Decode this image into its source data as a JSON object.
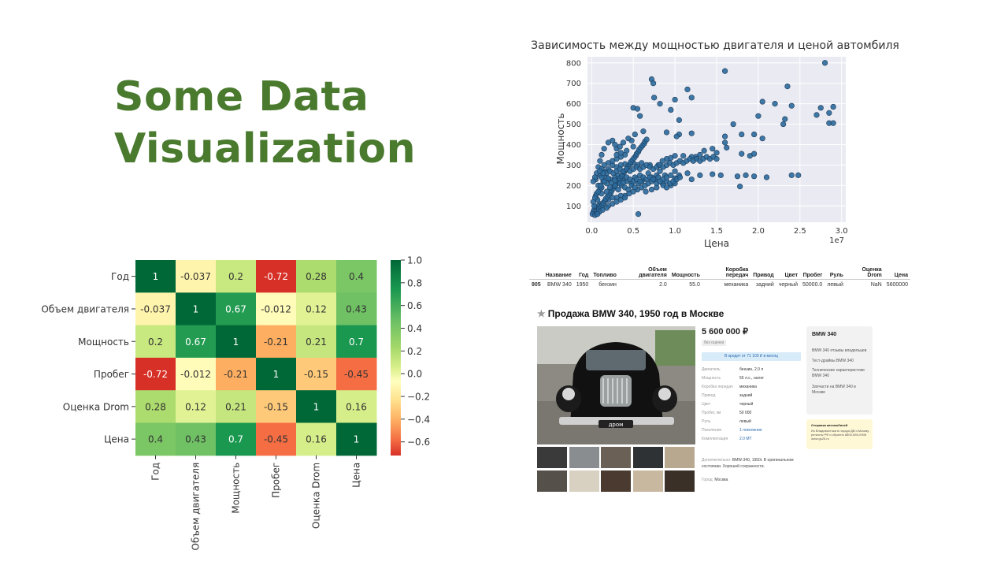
{
  "slide": {
    "title_line1": "Some Data",
    "title_line2": "Visualization"
  },
  "chart_data": [
    {
      "type": "scatter",
      "title": "Зависимость между мощностью двигателя и ценой автомбиля",
      "xlabel": "Цена",
      "ylabel": "Мощность",
      "x_scale_label": "1e7",
      "xlim": [
        -0.05,
        3.05
      ],
      "ylim": [
        20,
        830
      ],
      "xticks": [
        0.0,
        0.5,
        1.0,
        1.5,
        2.0,
        2.5,
        3.0
      ],
      "xtick_labels": [
        "0.0",
        "0.5",
        "1.0",
        "1.5",
        "2.0",
        "2.5",
        "3.0"
      ],
      "yticks": [
        100,
        200,
        300,
        400,
        500,
        600,
        700,
        800
      ],
      "grid": true,
      "point_color": "#2b6a9c",
      "points": [
        [
          2.8,
          800
        ],
        [
          1.6,
          760
        ],
        [
          0.72,
          720
        ],
        [
          0.74,
          700
        ],
        [
          1.15,
          670
        ],
        [
          1.2,
          630
        ],
        [
          0.75,
          630
        ],
        [
          2.35,
          685
        ],
        [
          2.05,
          610
        ],
        [
          2.2,
          600
        ],
        [
          2.4,
          590
        ],
        [
          2.75,
          580
        ],
        [
          2.9,
          585
        ],
        [
          2.85,
          555
        ],
        [
          2.85,
          505
        ],
        [
          2.9,
          505
        ],
        [
          2.3,
          500
        ],
        [
          2.32,
          525
        ],
        [
          2.7,
          545
        ],
        [
          2.0,
          540
        ],
        [
          1.0,
          620
        ],
        [
          0.95,
          570
        ],
        [
          0.82,
          600
        ],
        [
          1.7,
          500
        ],
        [
          1.05,
          520
        ],
        [
          1.2,
          455
        ],
        [
          0.5,
          580
        ],
        [
          0.55,
          575
        ],
        [
          0.58,
          540
        ],
        [
          0.62,
          465
        ],
        [
          0.9,
          460
        ],
        [
          1.05,
          450
        ],
        [
          1.02,
          440
        ],
        [
          1.95,
          450
        ],
        [
          1.8,
          450
        ],
        [
          2.05,
          430
        ],
        [
          1.6,
          440
        ],
        [
          1.6,
          410
        ],
        [
          1.62,
          385
        ],
        [
          1.8,
          355
        ],
        [
          1.9,
          345
        ],
        [
          1.95,
          355
        ],
        [
          1.5,
          360
        ],
        [
          1.45,
          380
        ],
        [
          1.35,
          370
        ],
        [
          1.3,
          350
        ],
        [
          1.25,
          340
        ],
        [
          1.2,
          340
        ],
        [
          1.1,
          345
        ],
        [
          1.0,
          345
        ],
        [
          0.95,
          335
        ],
        [
          0.9,
          330
        ],
        [
          0.85,
          320
        ],
        [
          0.8,
          300
        ],
        [
          0.7,
          300
        ],
        [
          0.6,
          310
        ],
        [
          0.55,
          300
        ],
        [
          0.5,
          310
        ],
        [
          0.45,
          300
        ],
        [
          0.4,
          305
        ],
        [
          0.35,
          300
        ],
        [
          0.3,
          290
        ],
        [
          0.25,
          300
        ],
        [
          0.2,
          280
        ],
        [
          0.15,
          270
        ],
        [
          0.1,
          250
        ],
        [
          0.05,
          230
        ],
        [
          0.08,
          200
        ],
        [
          0.12,
          190
        ],
        [
          0.18,
          210
        ],
        [
          0.22,
          230
        ],
        [
          0.28,
          240
        ],
        [
          0.32,
          250
        ],
        [
          0.38,
          230
        ],
        [
          0.42,
          220
        ],
        [
          0.48,
          210
        ],
        [
          0.52,
          240
        ],
        [
          0.58,
          250
        ],
        [
          0.62,
          230
        ],
        [
          0.68,
          260
        ],
        [
          0.72,
          240
        ],
        [
          0.78,
          250
        ],
        [
          0.82,
          270
        ],
        [
          0.88,
          250
        ],
        [
          1.0,
          270
        ],
        [
          1.05,
          250
        ],
        [
          1.15,
          260
        ],
        [
          1.3,
          250
        ],
        [
          1.45,
          255
        ],
        [
          1.55,
          250
        ],
        [
          1.75,
          245
        ],
        [
          1.85,
          250
        ],
        [
          1.95,
          245
        ],
        [
          2.1,
          240
        ],
        [
          2.4,
          250
        ],
        [
          2.48,
          250
        ],
        [
          1.78,
          195
        ],
        [
          1.2,
          230
        ],
        [
          1.0,
          210
        ],
        [
          0.95,
          200
        ],
        [
          0.9,
          220
        ],
        [
          0.85,
          210
        ],
        [
          0.78,
          190
        ],
        [
          0.72,
          180
        ],
        [
          0.65,
          170
        ],
        [
          0.6,
          190
        ],
        [
          0.55,
          180
        ],
        [
          0.5,
          170
        ],
        [
          0.45,
          160
        ],
        [
          0.4,
          150
        ],
        [
          0.35,
          150
        ],
        [
          0.3,
          140
        ],
        [
          0.25,
          140
        ],
        [
          0.2,
          130
        ],
        [
          0.15,
          120
        ],
        [
          0.1,
          110
        ],
        [
          0.08,
          100
        ],
        [
          0.05,
          90
        ],
        [
          0.03,
          80
        ],
        [
          0.02,
          70
        ],
        [
          0.01,
          60
        ],
        [
          0.04,
          55
        ],
        [
          0.06,
          65
        ],
        [
          0.07,
          75
        ],
        [
          0.09,
          85
        ],
        [
          0.11,
          95
        ],
        [
          0.13,
          105
        ],
        [
          0.14,
          115
        ],
        [
          0.16,
          125
        ],
        [
          0.17,
          135
        ],
        [
          0.19,
          145
        ],
        [
          0.21,
          155
        ],
        [
          0.23,
          165
        ],
        [
          0.24,
          175
        ],
        [
          0.26,
          185
        ],
        [
          0.27,
          195
        ],
        [
          0.29,
          205
        ],
        [
          0.31,
          215
        ],
        [
          0.33,
          225
        ],
        [
          0.34,
          235
        ],
        [
          0.36,
          245
        ],
        [
          0.37,
          255
        ],
        [
          0.39,
          265
        ],
        [
          0.41,
          275
        ],
        [
          0.43,
          285
        ],
        [
          0.44,
          295
        ],
        [
          0.46,
          305
        ],
        [
          0.47,
          315
        ],
        [
          0.49,
          325
        ],
        [
          0.51,
          335
        ],
        [
          0.53,
          345
        ],
        [
          0.54,
          355
        ],
        [
          0.56,
          365
        ],
        [
          0.57,
          375
        ],
        [
          0.59,
          385
        ],
        [
          0.61,
          395
        ],
        [
          0.63,
          405
        ],
        [
          0.64,
          415
        ],
        [
          0.66,
          425
        ],
        [
          0.3,
          380
        ],
        [
          0.25,
          420
        ],
        [
          0.2,
          410
        ],
        [
          0.15,
          380
        ],
        [
          0.12,
          350
        ],
        [
          0.1,
          320
        ],
        [
          0.08,
          290
        ],
        [
          0.06,
          260
        ],
        [
          0.04,
          240
        ],
        [
          0.02,
          220
        ],
        [
          0.1,
          180
        ],
        [
          0.05,
          150
        ],
        [
          0.07,
          130
        ],
        [
          0.12,
          160
        ],
        [
          0.18,
          170
        ],
        [
          0.22,
          190
        ],
        [
          0.28,
          200
        ],
        [
          0.32,
          180
        ],
        [
          0.36,
          200
        ],
        [
          0.4,
          190
        ],
        [
          0.44,
          180
        ],
        [
          0.48,
          200
        ],
        [
          0.52,
          190
        ],
        [
          0.56,
          210
        ],
        [
          0.6,
          220
        ],
        [
          0.64,
          200
        ],
        [
          0.68,
          210
        ],
        [
          0.72,
          220
        ],
        [
          0.76,
          230
        ],
        [
          0.8,
          240
        ],
        [
          0.85,
          230
        ],
        [
          0.9,
          240
        ],
        [
          0.95,
          250
        ],
        [
          1.0,
          235
        ],
        [
          0.56,
          60
        ],
        [
          0.2,
          100
        ],
        [
          0.25,
          110
        ],
        [
          0.3,
          120
        ],
        [
          0.35,
          130
        ],
        [
          0.4,
          140
        ],
        [
          0.18,
          90
        ],
        [
          0.13,
          80
        ],
        [
          0.09,
          70
        ],
        [
          0.07,
          60
        ],
        [
          0.03,
          100
        ],
        [
          0.02,
          120
        ],
        [
          0.04,
          140
        ],
        [
          0.06,
          160
        ],
        [
          0.08,
          170
        ],
        [
          0.11,
          200
        ],
        [
          0.14,
          220
        ],
        [
          0.16,
          240
        ],
        [
          0.18,
          260
        ],
        [
          0.22,
          270
        ],
        [
          0.26,
          260
        ],
        [
          0.3,
          270
        ],
        [
          0.34,
          280
        ],
        [
          0.38,
          270
        ],
        [
          0.42,
          280
        ],
        [
          0.46,
          270
        ],
        [
          0.5,
          280
        ],
        [
          0.54,
          290
        ],
        [
          0.58,
          280
        ],
        [
          0.62,
          290
        ],
        [
          0.66,
          300
        ],
        [
          0.7,
          290
        ],
        [
          0.74,
          280
        ],
        [
          0.78,
          290
        ],
        [
          0.82,
          300
        ],
        [
          0.86,
          290
        ],
        [
          0.9,
          300
        ],
        [
          0.94,
          310
        ],
        [
          0.98,
          300
        ],
        [
          1.02,
          310
        ],
        [
          1.06,
          320
        ],
        [
          1.1,
          310
        ],
        [
          1.14,
          320
        ],
        [
          1.18,
          330
        ],
        [
          1.22,
          320
        ],
        [
          1.26,
          330
        ],
        [
          1.3,
          320
        ],
        [
          1.34,
          330
        ],
        [
          1.38,
          340
        ],
        [
          1.42,
          330
        ],
        [
          1.46,
          340
        ],
        [
          1.5,
          330
        ],
        [
          0.4,
          350
        ],
        [
          0.35,
          340
        ],
        [
          0.3,
          330
        ],
        [
          0.25,
          320
        ],
        [
          0.2,
          310
        ],
        [
          0.15,
          300
        ],
        [
          0.12,
          280
        ],
        [
          0.1,
          270
        ],
        [
          0.15,
          220
        ],
        [
          0.12,
          240
        ],
        [
          0.14,
          260
        ],
        [
          0.2,
          235
        ],
        [
          0.24,
          215
        ],
        [
          0.28,
          225
        ],
        [
          0.34,
          210
        ],
        [
          0.38,
          215
        ],
        [
          0.42,
          240
        ],
        [
          0.46,
          230
        ],
        [
          0.5,
          220
        ],
        [
          0.54,
          230
        ],
        [
          0.58,
          220
        ],
        [
          0.62,
          240
        ],
        [
          0.66,
          230
        ],
        [
          0.7,
          240
        ],
        [
          0.74,
          230
        ],
        [
          0.78,
          210
        ],
        [
          0.82,
          220
        ],
        [
          0.86,
          200
        ],
        [
          0.9,
          190
        ],
        [
          0.94,
          210
        ],
        [
          0.98,
          220
        ],
        [
          1.02,
          230
        ],
        [
          1.06,
          240
        ],
        [
          0.3,
          350
        ],
        [
          0.35,
          360
        ],
        [
          0.42,
          370
        ],
        [
          0.5,
          390
        ],
        [
          0.48,
          420
        ],
        [
          0.52,
          450
        ],
        [
          0.44,
          430
        ],
        [
          0.38,
          410
        ],
        [
          0.34,
          390
        ],
        [
          0.28,
          400
        ]
      ]
    },
    {
      "type": "heatmap",
      "row_labels": [
        "Год",
        "Объем двигателя",
        "Мощность",
        "Пробег",
        "Оценка Drom",
        "Цена"
      ],
      "col_labels": [
        "Год",
        "Объем двигателя",
        "Мощность",
        "Пробег",
        "Оценка Drom",
        "Цена"
      ],
      "values": [
        [
          1,
          -0.037,
          0.2,
          -0.72,
          0.28,
          0.4
        ],
        [
          -0.037,
          1,
          0.67,
          -0.012,
          0.12,
          0.43
        ],
        [
          0.2,
          0.67,
          1,
          -0.21,
          0.21,
          0.7
        ],
        [
          -0.72,
          -0.012,
          -0.21,
          1,
          -0.15,
          -0.45
        ],
        [
          0.28,
          0.12,
          0.21,
          -0.15,
          1,
          0.16
        ],
        [
          0.4,
          0.43,
          0.7,
          -0.45,
          0.16,
          1
        ]
      ],
      "cell_labels": [
        [
          "1",
          "-0.037",
          "0.2",
          "-0.72",
          "0.28",
          "0.4"
        ],
        [
          "-0.037",
          "1",
          "0.67",
          "-0.012",
          "0.12",
          "0.43"
        ],
        [
          "0.2",
          "0.67",
          "1",
          "-0.21",
          "0.21",
          "0.7"
        ],
        [
          "-0.72",
          "-0.012",
          "-0.21",
          "1",
          "-0.15",
          "-0.45"
        ],
        [
          "0.28",
          "0.12",
          "0.21",
          "-0.15",
          "1",
          "0.16"
        ],
        [
          "0.4",
          "0.43",
          "0.7",
          "-0.45",
          "0.16",
          "1"
        ]
      ],
      "colormap": "RdYlGn",
      "vmin": -0.72,
      "vmax": 1.0,
      "colorbar_ticks": [
        1.0,
        0.8,
        0.6,
        0.4,
        0.2,
        0.0,
        -0.2,
        -0.4,
        -0.6
      ],
      "colorbar_tick_labels": [
        "1.0",
        "0.8",
        "0.6",
        "0.4",
        "0.2",
        "0.0",
        "−0.2",
        "−0.4",
        "−0.6"
      ]
    },
    {
      "type": "table",
      "columns": [
        "Название",
        "Год",
        "Топливо",
        "Объем двигателя",
        "Мощность",
        "Коробка передач",
        "Привод",
        "Цвет",
        "Пробег",
        "Руль",
        "Оценка Drom",
        "Цена"
      ],
      "rows": [
        {
          "index": "905",
          "cells": [
            "BMW 340",
            "1950",
            "бензин",
            "2.0",
            "55.0",
            "механика",
            "задний",
            "черный",
            "50000.0",
            "левый",
            "NaN",
            "5600000"
          ]
        }
      ]
    }
  ],
  "listing": {
    "title": "Продажа BMW 340, 1950 год в Москве",
    "price": "5 600 000 ₽",
    "price_tag": "без оценки",
    "credit": "В кредит от 71 103 ₽ в месяц",
    "watermark": "дром",
    "specs": [
      {
        "k": "Двигатель",
        "v": "бензин, 2.0 л"
      },
      {
        "k": "Мощность",
        "v": "55 л.с., налог"
      },
      {
        "k": "Коробка передач",
        "v": "механика"
      },
      {
        "k": "Привод",
        "v": "задний"
      },
      {
        "k": "Цвет",
        "v": "черный"
      },
      {
        "k": "Пробег, км",
        "v": "50 000"
      },
      {
        "k": "Руль",
        "v": "левый"
      },
      {
        "k": "Поколение",
        "v": "1 поколение"
      },
      {
        "k": "Комплектация",
        "v": "2.0 MT"
      }
    ],
    "description_label": "Дополнительно:",
    "description": "BMW-340, 1950г. В оригинальном состоянии. Хорошей сохранности.",
    "city_label": "Город:",
    "city": "Москва",
    "side": {
      "title": "BMW 340",
      "links": [
        "BMW 340 отзывы владельцев",
        "Тест-драйвы BMW 340",
        "Технические характеристики BMW 340",
        "Запчасти на BMW 340 в Москве"
      ]
    },
    "shipping": {
      "title": "Отправка автомобилей",
      "text": "Из Владивостока в города ДВ и Москву, регионы РФ и обратно 8800-555-0908 www.gs25.ru"
    },
    "colors": {
      "link": "#2a6ab0",
      "credit_bg": "#d8ebf8",
      "yellow_bg": "#fff8d6"
    }
  }
}
